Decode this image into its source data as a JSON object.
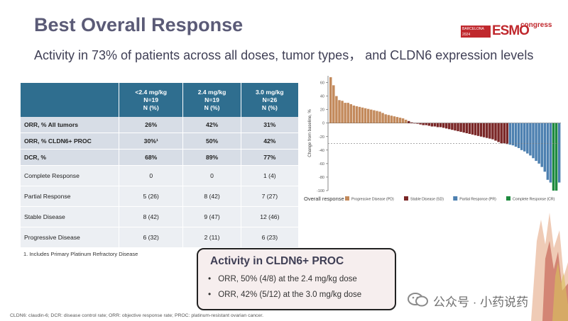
{
  "header": {
    "title": "Best Overall Response",
    "subtitle": "Activity in 73% of patients across all doses, tumor types， and CLDN6 expression levels"
  },
  "logo": {
    "box_line1": "BARCELONA",
    "box_line2": "2024",
    "brand": "ESMO",
    "suffix": "congress"
  },
  "table": {
    "columns": [
      {
        "dose": "<2.4 mg/kg",
        "n": "N=19",
        "unit": "N (%)"
      },
      {
        "dose": "2.4 mg/kg",
        "n": "N=19",
        "unit": "N (%)"
      },
      {
        "dose": "3.0 mg/kg",
        "n": "N=26",
        "unit": "N (%)"
      }
    ],
    "rows": [
      {
        "label": "ORR, % All tumors",
        "values": [
          "26%",
          "42%",
          "31%"
        ]
      },
      {
        "label": "ORR, % CLDN6+ PROC",
        "values": [
          "30%¹",
          "50%",
          "42%"
        ]
      },
      {
        "label": "DCR, %",
        "values": [
          "68%",
          "89%",
          "77%"
        ]
      },
      {
        "label": "Complete Response",
        "values": [
          "0",
          "0",
          "1 (4)"
        ]
      },
      {
        "label": "Partial Response",
        "values": [
          "5 (26)",
          "8 (42)",
          "7 (27)"
        ]
      },
      {
        "label": "Stable Disease",
        "values": [
          "8 (42)",
          "9 (47)",
          "12 (46)"
        ]
      },
      {
        "label": "Progressive Disease",
        "values": [
          "6 (32)",
          "2 (11)",
          "6 (23)"
        ]
      }
    ],
    "footnote": "1. Includes Primary Platinum Refractory Disease"
  },
  "callout": {
    "title": "Activity in CLDN6+ PROC",
    "bullets": [
      "ORR, 50% (4/8) at the 2.4 mg/kg dose",
      "ORR, 42% (5/12) at the 3.0 mg/kg dose"
    ]
  },
  "abbreviations": "CLDN6: claudin-6; DCR: disease control rate; ORR: objective response rate; PROC: platinum-resistant ovarian cancer.",
  "watermark": {
    "text": "公众号 · 小药说药"
  },
  "colors": {
    "title": "#5b5b77",
    "table_header": "#2f6e8f",
    "pd": "#c38a5c",
    "sd": "#7a2727",
    "pr": "#4d80b0",
    "cr": "#1e8a3e",
    "brand_red": "#c0282d"
  },
  "chart_data": {
    "type": "bar",
    "title": "",
    "ylabel": "Change from baseline, %",
    "ylim": [
      -100,
      70
    ],
    "yticks": [
      60,
      40,
      20,
      0,
      -20,
      -40,
      -60,
      -80,
      -100
    ],
    "yticklabels": [
      "60",
      "40",
      "20",
      "0",
      "-20",
      "-40",
      "-60",
      "-80",
      "-100"
    ],
    "reference_line": -30,
    "legend_title": "Overall response",
    "categories_legend": [
      {
        "key": "PD",
        "label": "Progressive Disease (PD)"
      },
      {
        "key": "SD",
        "label": "Stable Disease (SD)"
      },
      {
        "key": "PR",
        "label": "Partial Response (PR)"
      },
      {
        "key": "CR",
        "label": "Complete Response (CR)"
      }
    ],
    "bars": [
      {
        "value": 68,
        "response": "PD"
      },
      {
        "value": 56,
        "response": "PD"
      },
      {
        "value": 40,
        "response": "PD"
      },
      {
        "value": 34,
        "response": "PD"
      },
      {
        "value": 33,
        "response": "PD"
      },
      {
        "value": 30,
        "response": "PD"
      },
      {
        "value": 30,
        "response": "PD"
      },
      {
        "value": 28,
        "response": "PD"
      },
      {
        "value": 26,
        "response": "PD"
      },
      {
        "value": 25,
        "response": "PD"
      },
      {
        "value": 24,
        "response": "PD"
      },
      {
        "value": 23,
        "response": "PD"
      },
      {
        "value": 22,
        "response": "PD"
      },
      {
        "value": 21,
        "response": "PD"
      },
      {
        "value": 20,
        "response": "PD"
      },
      {
        "value": 19,
        "response": "PD"
      },
      {
        "value": 18,
        "response": "PD"
      },
      {
        "value": 17,
        "response": "PD"
      },
      {
        "value": 15,
        "response": "PD"
      },
      {
        "value": 13,
        "response": "PD"
      },
      {
        "value": 12,
        "response": "PD"
      },
      {
        "value": 11,
        "response": "PD"
      },
      {
        "value": 10,
        "response": "PD"
      },
      {
        "value": 9,
        "response": "PD"
      },
      {
        "value": 8,
        "response": "PD"
      },
      {
        "value": 7,
        "response": "PD"
      },
      {
        "value": 5,
        "response": "PD"
      },
      {
        "value": 3,
        "response": "SD"
      },
      {
        "value": 1,
        "response": "SD"
      },
      {
        "value": 0,
        "response": "SD"
      },
      {
        "value": -1,
        "response": "SD"
      },
      {
        "value": -2,
        "response": "SD"
      },
      {
        "value": -3,
        "response": "SD"
      },
      {
        "value": -3,
        "response": "SD"
      },
      {
        "value": -4,
        "response": "SD"
      },
      {
        "value": -5,
        "response": "SD"
      },
      {
        "value": -5,
        "response": "SD"
      },
      {
        "value": -6,
        "response": "SD"
      },
      {
        "value": -6,
        "response": "SD"
      },
      {
        "value": -7,
        "response": "SD"
      },
      {
        "value": -8,
        "response": "SD"
      },
      {
        "value": -9,
        "response": "SD"
      },
      {
        "value": -10,
        "response": "SD"
      },
      {
        "value": -11,
        "response": "SD"
      },
      {
        "value": -12,
        "response": "SD"
      },
      {
        "value": -13,
        "response": "SD"
      },
      {
        "value": -14,
        "response": "SD"
      },
      {
        "value": -15,
        "response": "SD"
      },
      {
        "value": -16,
        "response": "SD"
      },
      {
        "value": -17,
        "response": "SD"
      },
      {
        "value": -18,
        "response": "SD"
      },
      {
        "value": -19,
        "response": "SD"
      },
      {
        "value": -20,
        "response": "SD"
      },
      {
        "value": -21,
        "response": "SD"
      },
      {
        "value": -22,
        "response": "SD"
      },
      {
        "value": -23,
        "response": "SD"
      },
      {
        "value": -24,
        "response": "SD"
      },
      {
        "value": -26,
        "response": "SD"
      },
      {
        "value": -28,
        "response": "SD"
      },
      {
        "value": -30,
        "response": "SD"
      },
      {
        "value": -30,
        "response": "SD"
      },
      {
        "value": -31,
        "response": "SD"
      },
      {
        "value": -32,
        "response": "PR"
      },
      {
        "value": -33,
        "response": "PR"
      },
      {
        "value": -35,
        "response": "PR"
      },
      {
        "value": -37,
        "response": "PR"
      },
      {
        "value": -40,
        "response": "PR"
      },
      {
        "value": -42,
        "response": "PR"
      },
      {
        "value": -45,
        "response": "PR"
      },
      {
        "value": -48,
        "response": "PR"
      },
      {
        "value": -52,
        "response": "PR"
      },
      {
        "value": -56,
        "response": "PR"
      },
      {
        "value": -60,
        "response": "PR"
      },
      {
        "value": -65,
        "response": "PR"
      },
      {
        "value": -72,
        "response": "PR"
      },
      {
        "value": -84,
        "response": "PR"
      },
      {
        "value": -88,
        "response": "PR"
      },
      {
        "value": -100,
        "response": "CR"
      },
      {
        "value": -100,
        "response": "CR"
      },
      {
        "value": -88,
        "response": "PR"
      }
    ]
  }
}
